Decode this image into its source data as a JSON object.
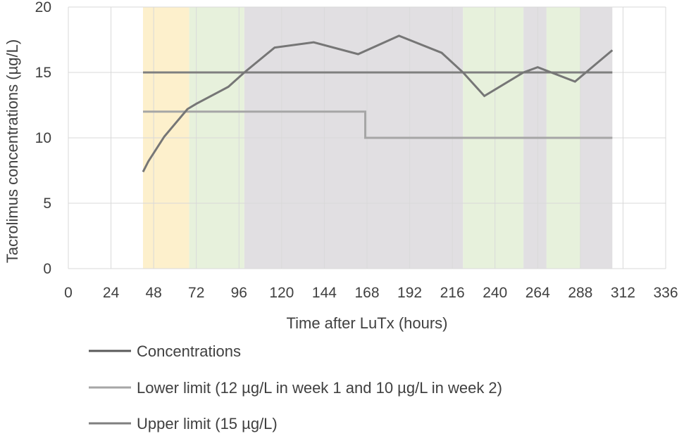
{
  "chart_data": {
    "type": "line",
    "title": "",
    "xlabel": "Time after LuTx (hours)",
    "ylabel": "Tacrolimus concentrations (µg/L)",
    "xlim": [
      0,
      336
    ],
    "ylim": [
      0,
      20
    ],
    "x_ticks": [
      0,
      24,
      48,
      72,
      96,
      120,
      144,
      168,
      192,
      216,
      240,
      264,
      288,
      312,
      336
    ],
    "y_ticks": [
      0,
      5,
      10,
      15,
      20
    ],
    "grid": true,
    "legend_position": "bottom",
    "series": [
      {
        "name": "Concentrations",
        "color": "#767676",
        "x": [
          42,
          45,
          54,
          67,
          72,
          90,
          99,
          116,
          138,
          163,
          186,
          210,
          222,
          234,
          256,
          264,
          285,
          306
        ],
        "y": [
          7.4,
          8.2,
          10.1,
          12.2,
          12.6,
          13.9,
          15.0,
          16.9,
          17.3,
          16.4,
          17.8,
          16.5,
          15.0,
          13.2,
          15.0,
          15.4,
          14.3,
          16.7
        ]
      },
      {
        "name": "Lower limit (12 µg/L in week 1 and 10 µg/L in week 2)",
        "color": "#a6a6a6",
        "x": [
          42,
          167,
          167,
          306
        ],
        "y": [
          12,
          12,
          10,
          10
        ]
      },
      {
        "name": "Upper limit (15 µg/L)",
        "color": "#7f7f7f",
        "x": [
          42,
          306
        ],
        "y": [
          15,
          15
        ]
      }
    ],
    "shaded_regions": [
      {
        "x0": 42,
        "x1": 68,
        "color": "#fdf0cc"
      },
      {
        "x0": 68,
        "x1": 99,
        "color": "#e7f1dc"
      },
      {
        "x0": 99,
        "x1": 222,
        "color": "#e1dfe2"
      },
      {
        "x0": 222,
        "x1": 256,
        "color": "#e7f1dc"
      },
      {
        "x0": 256,
        "x1": 269,
        "color": "#e1dfe2"
      },
      {
        "x0": 269,
        "x1": 288,
        "color": "#e7f1dc"
      },
      {
        "x0": 288,
        "x1": 306,
        "color": "#e1dfe2"
      }
    ],
    "legend": [
      {
        "label": "Concentrations",
        "color": "#595959"
      },
      {
        "label": "Lower limit (12 µg/L in week 1 and 10 µg/L in week 2)",
        "color": "#a6a6a6"
      },
      {
        "label": "Upper limit (15 µg/L)",
        "color": "#7f7f7f"
      }
    ]
  }
}
